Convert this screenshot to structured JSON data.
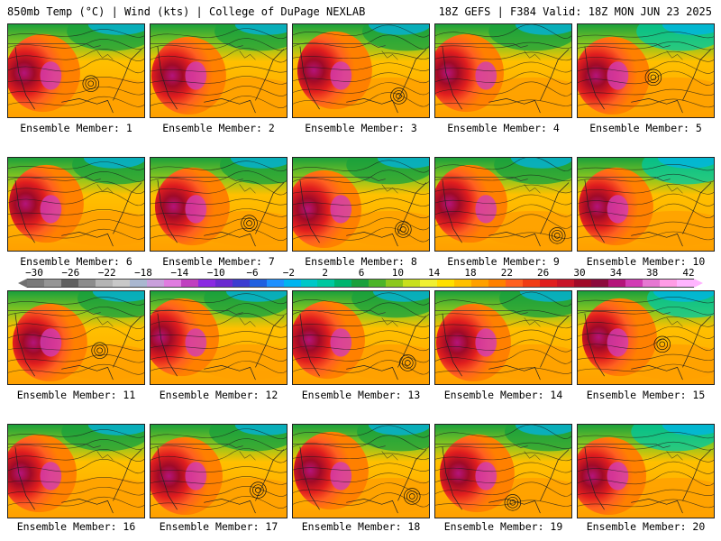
{
  "header": {
    "left": "850mb Temp (°C) | Wind (kts) | College of DuPage NEXLAB",
    "right": "18Z GEFS | F384 Valid: 18Z MON JUN 23 2025"
  },
  "panels": [
    {
      "label": "Ensemble Member: 1",
      "member": 1
    },
    {
      "label": "Ensemble Member: 2",
      "member": 2
    },
    {
      "label": "Ensemble Member: 3",
      "member": 3
    },
    {
      "label": "Ensemble Member: 4",
      "member": 4
    },
    {
      "label": "Ensemble Member: 5",
      "member": 5
    },
    {
      "label": "Ensemble Member: 6",
      "member": 6
    },
    {
      "label": "Ensemble Member: 7",
      "member": 7
    },
    {
      "label": "Ensemble Member: 8",
      "member": 8
    },
    {
      "label": "Ensemble Member: 9",
      "member": 9
    },
    {
      "label": "Ensemble Member: 10",
      "member": 10
    },
    {
      "label": "Ensemble Member: 11",
      "member": 11
    },
    {
      "label": "Ensemble Member: 12",
      "member": 12
    },
    {
      "label": "Ensemble Member: 13",
      "member": 13
    },
    {
      "label": "Ensemble Member: 14",
      "member": 14
    },
    {
      "label": "Ensemble Member: 15",
      "member": 15
    },
    {
      "label": "Ensemble Member: 16",
      "member": 16
    },
    {
      "label": "Ensemble Member: 17",
      "member": 17
    },
    {
      "label": "Ensemble Member: 18",
      "member": 18
    },
    {
      "label": "Ensemble Member: 19",
      "member": 19
    },
    {
      "label": "Ensemble Member: 20",
      "member": 20
    }
  ],
  "colorbar": {
    "ticks": [
      "−30",
      "−26",
      "−22",
      "−18",
      "−14",
      "−10",
      "−6",
      "−2",
      "2",
      "6",
      "10",
      "14",
      "18",
      "22",
      "26",
      "30",
      "34",
      "38",
      "42"
    ],
    "colors": [
      "#7a7a7a",
      "#959595",
      "#606060",
      "#8c8c8c",
      "#b4b4b4",
      "#c8c8c8",
      "#a9b7d0",
      "#c9a0dc",
      "#e07ce0",
      "#c040c0",
      "#8a2be2",
      "#6a2bd0",
      "#3c3cd0",
      "#2060e0",
      "#1e90ff",
      "#00b4f0",
      "#00c8c8",
      "#00c8a0",
      "#00b46e",
      "#1aa03c",
      "#4cb428",
      "#8cc81e",
      "#c8e01e",
      "#f0f032",
      "#ffe000",
      "#ffc000",
      "#ffa000",
      "#ff8000",
      "#ff6020",
      "#f03c14",
      "#e01e1e",
      "#c81428",
      "#a00a28",
      "#8c0a3c",
      "#b4147a",
      "#d23cb4",
      "#e678d2",
      "#ff9ce6",
      "#ffb4ff"
    ]
  }
}
